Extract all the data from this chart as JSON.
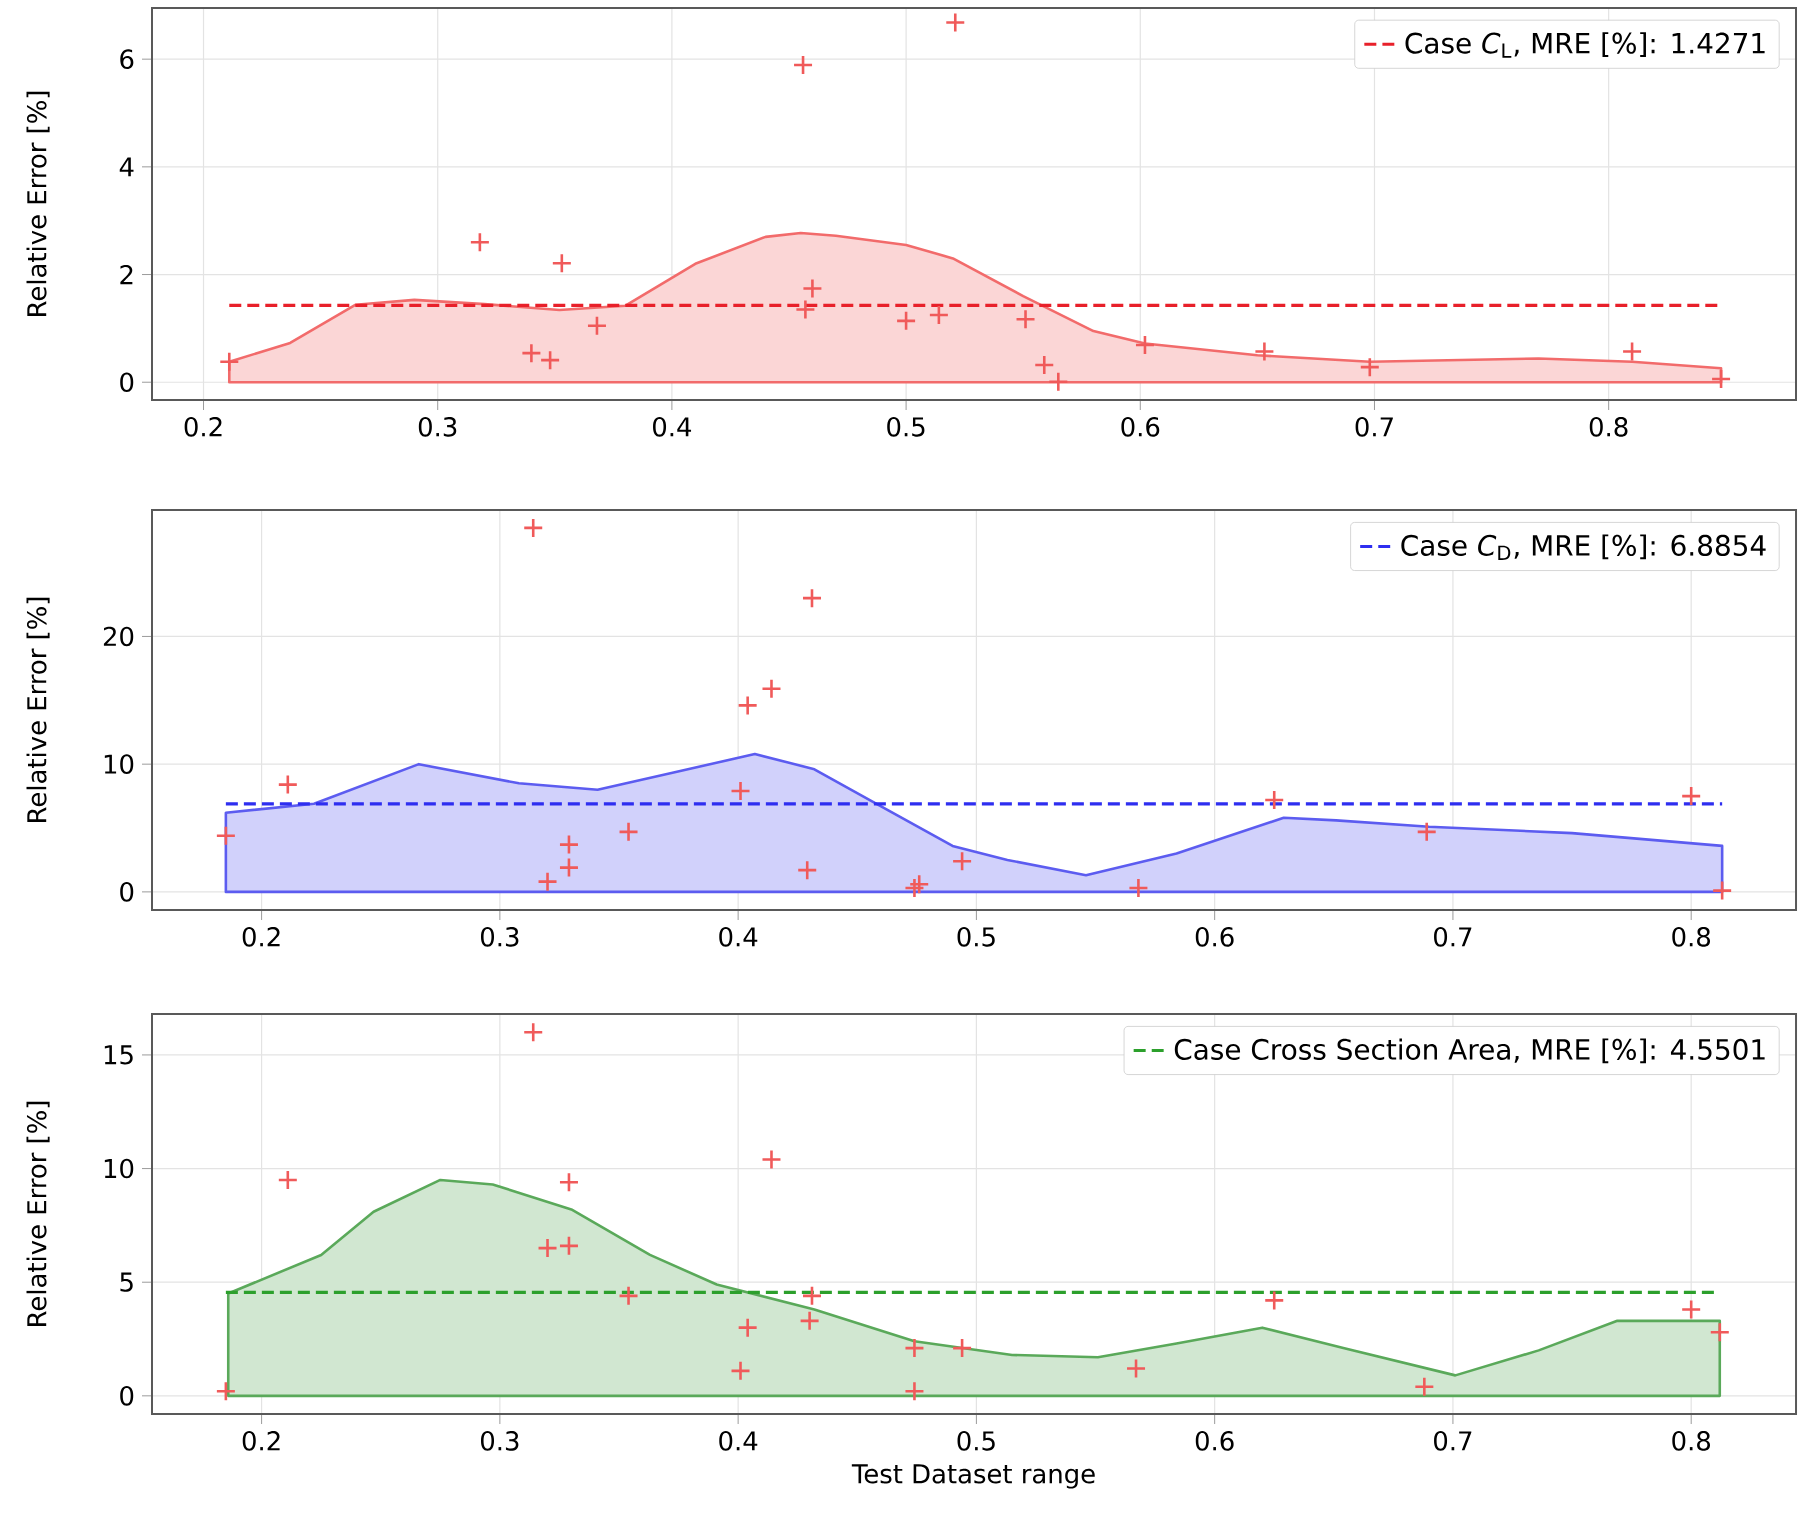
{
  "chart_data": [
    {
      "type": "scatter",
      "ylabel": "Relative Error [%]",
      "xlim": [
        0.178,
        0.88
      ],
      "ylim": [
        -0.33,
        6.95
      ],
      "xticks": [
        0.2,
        0.3,
        0.4,
        0.5,
        0.6,
        0.7,
        0.8
      ],
      "yticks": [
        0,
        2,
        4,
        6
      ],
      "grid": true,
      "legend": "top right",
      "ref_lines": [
        {
          "axis": "y",
          "value": 1.4271,
          "label": "Case *C*$_{L}$, MRE [%]: 1.4271",
          "color": "#e8202a",
          "line_style": "dashed"
        }
      ],
      "series": [
        {
          "type": "area",
          "color": "#f26b6b",
          "line_style": "solid",
          "x": [
            0.211,
            0.237,
            0.265,
            0.29,
            0.32,
            0.352,
            0.38,
            0.41,
            0.44,
            0.455,
            0.47,
            0.5,
            0.52,
            0.55,
            0.58,
            0.602,
            0.65,
            0.698,
            0.77,
            0.81,
            0.848
          ],
          "values": [
            0.38,
            0.73,
            1.44,
            1.53,
            1.45,
            1.34,
            1.42,
            2.2,
            2.7,
            2.77,
            2.72,
            2.55,
            2.3,
            1.6,
            0.95,
            0.72,
            0.5,
            0.38,
            0.44,
            0.38,
            0.26
          ]
        },
        {
          "color": "#f05a5a",
          "marker": "cross",
          "x": [
            0.211,
            0.318,
            0.34,
            0.348,
            0.353,
            0.368,
            0.456,
            0.457,
            0.46,
            0.5,
            0.514,
            0.521,
            0.551,
            0.559,
            0.565,
            0.602,
            0.653,
            0.698,
            0.81,
            0.848
          ],
          "values": [
            0.38,
            2.6,
            0.54,
            0.41,
            2.21,
            1.05,
            5.89,
            1.35,
            1.74,
            1.14,
            1.25,
            6.68,
            1.17,
            0.32,
            0.01,
            0.69,
            0.57,
            0.28,
            0.57,
            0.06
          ]
        }
      ]
    },
    {
      "type": "scatter",
      "ylabel": "Relative Error [%]",
      "xlim": [
        0.154,
        0.844
      ],
      "ylim": [
        -1.42,
        29.9
      ],
      "xticks": [
        0.2,
        0.3,
        0.4,
        0.5,
        0.6,
        0.7,
        0.8
      ],
      "yticks": [
        0,
        10,
        20
      ],
      "grid": true,
      "legend": "top right",
      "ref_lines": [
        {
          "axis": "y",
          "value": 6.8854,
          "label": "Case *C*$_{D}$, MRE [%]: 6.8854",
          "color": "#2e2ef0",
          "line_style": "dashed"
        }
      ],
      "series": [
        {
          "type": "area",
          "color": "#5c5cf0",
          "line_style": "solid",
          "x": [
            0.185,
            0.222,
            0.266,
            0.308,
            0.341,
            0.372,
            0.407,
            0.432,
            0.46,
            0.49,
            0.513,
            0.546,
            0.584,
            0.629,
            0.651,
            0.69,
            0.75,
            0.813
          ],
          "values": [
            6.2,
            6.9,
            10.0,
            8.5,
            8.0,
            9.3,
            10.8,
            9.6,
            6.7,
            3.6,
            2.5,
            1.3,
            3.0,
            5.8,
            5.6,
            5.1,
            4.6,
            3.6
          ]
        },
        {
          "color": "#f05a5a",
          "marker": "cross",
          "x": [
            0.185,
            0.211,
            0.314,
            0.32,
            0.329,
            0.329,
            0.354,
            0.401,
            0.404,
            0.414,
            0.431,
            0.429,
            0.474,
            0.476,
            0.494,
            0.568,
            0.625,
            0.689,
            0.8,
            0.813
          ],
          "values": [
            4.4,
            8.4,
            28.5,
            0.8,
            3.7,
            1.9,
            4.7,
            7.9,
            14.6,
            15.9,
            23.0,
            1.7,
            0.3,
            0.6,
            2.4,
            0.3,
            7.2,
            4.7,
            7.5,
            0.1
          ]
        }
      ]
    },
    {
      "type": "scatter",
      "xlabel": "Test Dataset range",
      "ylabel": "Relative Error [%]",
      "xlim": [
        0.154,
        0.844
      ],
      "ylim": [
        -0.8,
        16.8
      ],
      "xticks": [
        0.2,
        0.3,
        0.4,
        0.5,
        0.6,
        0.7,
        0.8
      ],
      "yticks": [
        0,
        5,
        10,
        15
      ],
      "grid": true,
      "legend": "top right",
      "ref_lines": [
        {
          "axis": "y",
          "value": 4.5501,
          "label": "Case Cross Section Area, MRE [%]: 4.5501",
          "color": "#2ca02c",
          "line_style": "dashed"
        }
      ],
      "series": [
        {
          "type": "area",
          "color": "#5aa95a",
          "line_style": "solid",
          "x": [
            0.186,
            0.225,
            0.247,
            0.275,
            0.297,
            0.33,
            0.363,
            0.391,
            0.432,
            0.474,
            0.515,
            0.551,
            0.584,
            0.62,
            0.654,
            0.701,
            0.736,
            0.769,
            0.812
          ],
          "values": [
            4.5,
            6.2,
            8.1,
            9.5,
            9.3,
            8.2,
            6.2,
            4.9,
            3.8,
            2.4,
            1.8,
            1.7,
            2.3,
            3.0,
            2.1,
            0.9,
            2.0,
            3.3,
            3.3
          ]
        },
        {
          "color": "#f05a5a",
          "marker": "cross",
          "x": [
            0.185,
            0.211,
            0.314,
            0.32,
            0.329,
            0.329,
            0.354,
            0.401,
            0.404,
            0.414,
            0.43,
            0.431,
            0.474,
            0.474,
            0.494,
            0.567,
            0.625,
            0.688,
            0.8,
            0.812
          ],
          "values": [
            0.2,
            9.5,
            16.0,
            6.5,
            6.6,
            9.4,
            4.4,
            1.1,
            3.0,
            10.4,
            3.3,
            4.4,
            2.1,
            0.2,
            2.1,
            1.2,
            4.2,
            0.4,
            3.8,
            2.8
          ]
        }
      ]
    }
  ]
}
